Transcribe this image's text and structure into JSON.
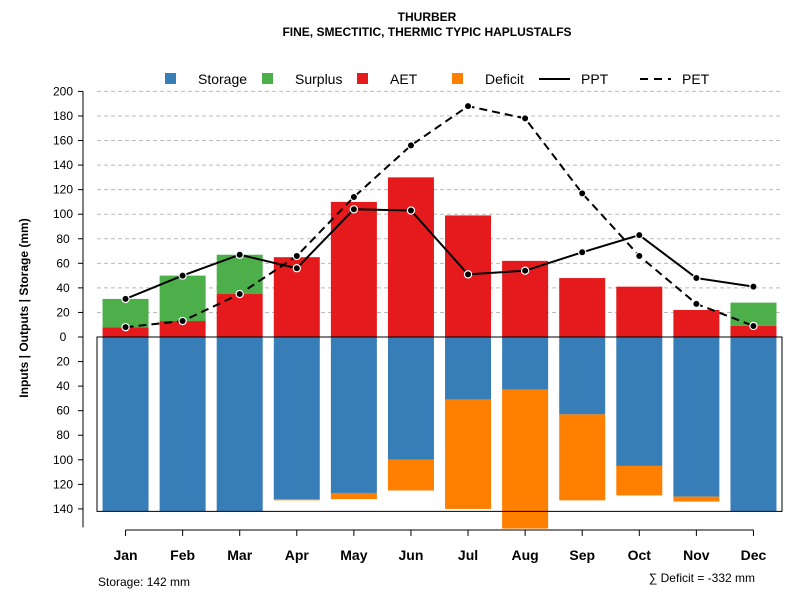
{
  "chart_data": {
    "type": "bar",
    "title": "THURBER",
    "subtitle": "FINE, SMECTITIC, THERMIC TYPIC HAPLUSTALFS",
    "ylabel": "Inputs | Outputs | Storage    (mm)",
    "categories": [
      "Jan",
      "Feb",
      "Mar",
      "Apr",
      "May",
      "Jun",
      "Jul",
      "Aug",
      "Sep",
      "Oct",
      "Nov",
      "Dec"
    ],
    "ylim": [
      -155,
      200
    ],
    "yticks_up": [
      "0",
      "20",
      "40",
      "60",
      "80",
      "100",
      "120",
      "140",
      "160",
      "180",
      "200"
    ],
    "yticks_down": [
      "20",
      "40",
      "60",
      "80",
      "100",
      "120",
      "140"
    ],
    "grid": true,
    "legend_position": "top",
    "legend": [
      {
        "key": "storage",
        "label": "Storage",
        "type": "box"
      },
      {
        "key": "surplus",
        "label": "Surplus",
        "type": "box"
      },
      {
        "key": "aet",
        "label": "AET",
        "type": "box"
      },
      {
        "key": "deficit",
        "label": "Deficit",
        "type": "box"
      },
      {
        "key": "ppt",
        "label": "PPT",
        "type": "solid"
      },
      {
        "key": "pet",
        "label": "PET",
        "type": "dashed"
      }
    ],
    "colors": {
      "storage": "#377eb8",
      "surplus": "#4daf4a",
      "aet": "#e41a1c",
      "deficit": "#ff7f00",
      "line": "#000000",
      "grid": "#bbbbbb"
    },
    "series": [
      {
        "name": "AET",
        "values": [
          8,
          13,
          35,
          65,
          110,
          130,
          99,
          62,
          48,
          41,
          22,
          9
        ]
      },
      {
        "name": "Surplus",
        "values": [
          23,
          37,
          32,
          0,
          0,
          0,
          0,
          0,
          0,
          0,
          0,
          19
        ]
      },
      {
        "name": "Storage",
        "values": [
          142,
          142,
          142,
          132,
          127,
          100,
          51,
          43,
          63,
          105,
          130,
          142
        ]
      },
      {
        "name": "Deficit",
        "values": [
          0,
          0,
          0,
          1,
          5,
          25,
          89,
          113,
          70,
          24,
          4,
          0
        ]
      },
      {
        "name": "PPT",
        "values": [
          31,
          50,
          67,
          56,
          104,
          103,
          51,
          54,
          69,
          83,
          48,
          41
        ]
      },
      {
        "name": "PET",
        "values": [
          8,
          13,
          35,
          66,
          114,
          156,
          188,
          178,
          117,
          66,
          27,
          9
        ]
      }
    ],
    "storage_note": "Storage: 142 mm",
    "deficit_note": "∑ Deficit = -332 mm"
  }
}
